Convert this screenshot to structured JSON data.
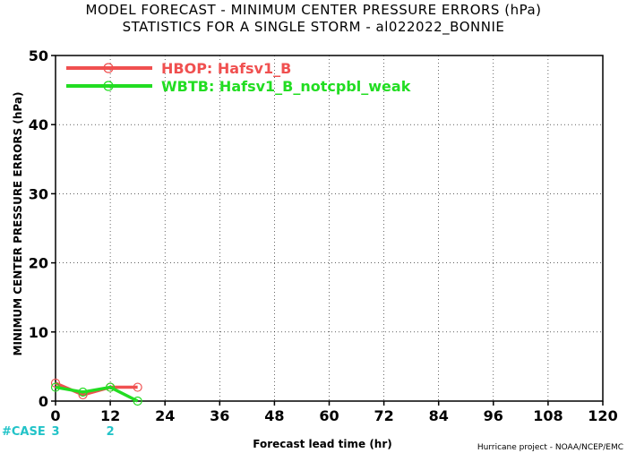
{
  "chart_data": {
    "type": "line",
    "title": "MODEL FORECAST - MINIMUM CENTER PRESSURE ERRORS (hPa)",
    "subtitle": "STATISTICS FOR A SINGLE STORM - al022022_BONNIE",
    "xlabel": "Forecast lead time (hr)",
    "ylabel": "MINIMUM CENTER PRESSURE ERRORS (hPa)",
    "xlim": [
      0,
      120
    ],
    "ylim": [
      0,
      50
    ],
    "x_ticks": [
      0,
      12,
      24,
      36,
      48,
      60,
      72,
      84,
      96,
      108,
      120
    ],
    "y_ticks": [
      0,
      10,
      20,
      30,
      40,
      50
    ],
    "grid": true,
    "legend_position": "top-left",
    "series": [
      {
        "name": "HBOP: Hafsv1_B",
        "color": "#f05050",
        "x": [
          0,
          6,
          12,
          18
        ],
        "y": [
          2.6,
          0.9,
          2.0,
          2.0
        ]
      },
      {
        "name": "WBTB: Hafsv1_B_notcpbl_weak",
        "color": "#22dd22",
        "x": [
          0,
          6,
          12,
          18
        ],
        "y": [
          2.0,
          1.3,
          2.0,
          0.0
        ]
      }
    ],
    "case_label": "#CASE",
    "case_counts": [
      {
        "x": 0,
        "n": "3"
      },
      {
        "x": 12,
        "n": "2"
      }
    ],
    "credit": "Hurricane project - NOAA/NCEP/EMC"
  }
}
